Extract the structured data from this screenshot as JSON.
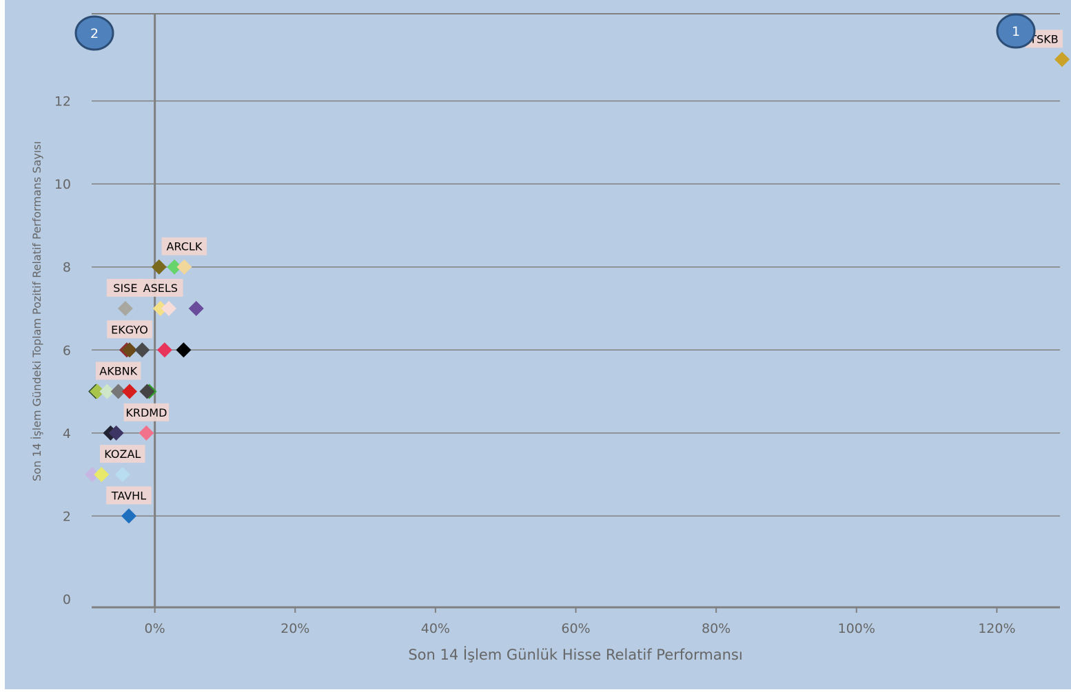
{
  "chart_data": {
    "type": "scatter",
    "xlabel": "Son 14 İşlem Günlük Hisse Relatif Performansı",
    "ylabel": "Son 14 İşlem Gündeki Toplam Pozitif Relatif Performans Sayısı",
    "xlim": [
      -9,
      129
    ],
    "ylim": [
      -0.2,
      14.1
    ],
    "x_ticks": [
      0,
      20,
      40,
      60,
      80,
      100,
      120
    ],
    "x_tick_labels": [
      "0%",
      "20%",
      "40%",
      "60%",
      "80%",
      "100%",
      "120%"
    ],
    "y_ticks": [
      0,
      2,
      4,
      6,
      8,
      10,
      12
    ],
    "y_tick_labels": [
      "0",
      "2",
      "4",
      "6",
      "8",
      "10",
      "12"
    ],
    "grid": "horizontal",
    "legend": "none",
    "colors": {
      "plot_background": "#b8cce4",
      "grid": "#808080",
      "axis": "#808080",
      "label_background": "#efd5d0"
    },
    "quadrant_markers": [
      {
        "text": "1",
        "position": "top-right"
      },
      {
        "text": "2",
        "position": "top-left"
      }
    ],
    "points": [
      {
        "x": 129.3,
        "y": 13.0,
        "label": "TSKB",
        "color": "#c9a227"
      },
      {
        "x": 0.6,
        "y": 8.0,
        "label": "",
        "color": "#7a6a1e"
      },
      {
        "x": 2.8,
        "y": 8.0,
        "label": "",
        "color": "#66d46b"
      },
      {
        "x": 4.2,
        "y": 8.0,
        "label": "ARCLK",
        "color": "#f2d79a"
      },
      {
        "x": -4.2,
        "y": 7.0,
        "label": "SISE",
        "color": "#a8a8a0"
      },
      {
        "x": 0.8,
        "y": 7.0,
        "label": "ASELS",
        "color": "#f5e08a"
      },
      {
        "x": 2.0,
        "y": 7.0,
        "label": "",
        "color": "#f7dcd8"
      },
      {
        "x": 5.9,
        "y": 7.0,
        "label": "",
        "color": "#6a4c9c"
      },
      {
        "x": -4.0,
        "y": 6.0,
        "label": "",
        "color": "#8b2e2e"
      },
      {
        "x": -3.6,
        "y": 6.0,
        "label": "EKGYO",
        "color": "#6b4a1a"
      },
      {
        "x": -1.8,
        "y": 6.0,
        "label": "",
        "color": "#4a4a4a"
      },
      {
        "x": 1.4,
        "y": 6.0,
        "label": "",
        "color": "#e8335a"
      },
      {
        "x": 4.1,
        "y": 6.0,
        "label": "",
        "color": "#000000"
      },
      {
        "x": -8.4,
        "y": 5.0,
        "label": "",
        "color": "#2a4a2a"
      },
      {
        "x": -8.2,
        "y": 5.0,
        "label": "",
        "color": "#a9c44a"
      },
      {
        "x": -6.8,
        "y": 5.0,
        "label": "",
        "color": "#cfe6c8"
      },
      {
        "x": -5.2,
        "y": 5.0,
        "label": "AKBNK",
        "color": "#777777"
      },
      {
        "x": -3.6,
        "y": 5.0,
        "label": "",
        "color": "#d71e1e"
      },
      {
        "x": -0.8,
        "y": 5.0,
        "label": "",
        "color": "#33a02c"
      },
      {
        "x": -1.1,
        "y": 5.0,
        "label": "",
        "color": "#444444"
      },
      {
        "x": -6.3,
        "y": 4.0,
        "label": "",
        "color": "#222233"
      },
      {
        "x": -5.5,
        "y": 4.0,
        "label": "",
        "color": "#3d3563"
      },
      {
        "x": -1.2,
        "y": 4.0,
        "label": "KRDMD",
        "color": "#f2728c"
      },
      {
        "x": -8.9,
        "y": 3.0,
        "label": "",
        "color": "#c8b6e2"
      },
      {
        "x": -7.6,
        "y": 3.0,
        "label": "",
        "color": "#e8e86a"
      },
      {
        "x": -4.6,
        "y": 3.0,
        "label": "KOZAL",
        "color": "#b8dcf0"
      },
      {
        "x": -3.7,
        "y": 2.0,
        "label": "TAVHL",
        "color": "#1f6fbf"
      }
    ]
  }
}
